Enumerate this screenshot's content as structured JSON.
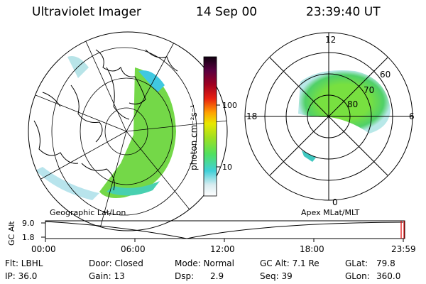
{
  "header": {
    "title": "Ultraviolet Imager",
    "date": "14 Sep 00",
    "time": "23:39:40 UT"
  },
  "colorbar": {
    "unit_label": "photon cm⁻²s⁻¹",
    "tick_100": "100",
    "tick_10": "10"
  },
  "polar_plot": {
    "lt_12": "12",
    "lt_18": "18",
    "lt_6": "6",
    "lt_0": "0",
    "lat_60": "60",
    "lat_70": "70",
    "lat_80": "80"
  },
  "labels": {
    "geo": "Geographic Lat/Lon",
    "apex": "Apex  MLat/MLT"
  },
  "timeline": {
    "ylabel": "GC Alt",
    "ytick_top": "9.0",
    "ytick_bottom": "1.8",
    "xticks": [
      "00:00",
      "06:00",
      "12:00",
      "18:00",
      "23:59"
    ],
    "marker_color": "#e00000"
  },
  "info": {
    "flt": "Flt: LBHL",
    "ip": "IP: 36.0",
    "door": "Door: Closed",
    "gain": "Gain: 13",
    "mode": "Mode: Normal",
    "dsp_label": "Dsp:",
    "dsp_value": "2.9",
    "gcalt": "GC Alt: 7.1 Re",
    "seq": "Seq: 39",
    "glat_label": "GLat:",
    "glat_value": "79.8",
    "glon_label": "GLon:",
    "glon_value": "360.0"
  }
}
